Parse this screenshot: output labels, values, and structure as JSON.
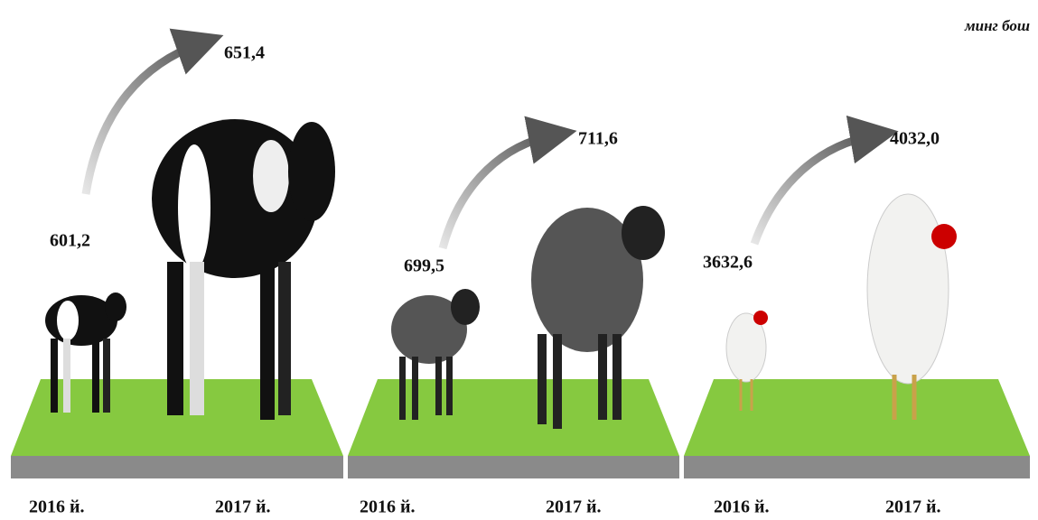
{
  "unit": "минг бош",
  "groups": [
    {
      "items": [
        {
          "value": "601,2",
          "year": "2016 й."
        },
        {
          "value": "651,4",
          "year": "2017 й."
        }
      ]
    },
    {
      "items": [
        {
          "value": "699,5",
          "year": "2016 й."
        },
        {
          "value": "711,6",
          "year": "2017 й."
        }
      ]
    },
    {
      "items": [
        {
          "value": "3632,6",
          "year": "2016 й."
        },
        {
          "value": "4032,0",
          "year": "2017 й."
        }
      ]
    }
  ]
}
